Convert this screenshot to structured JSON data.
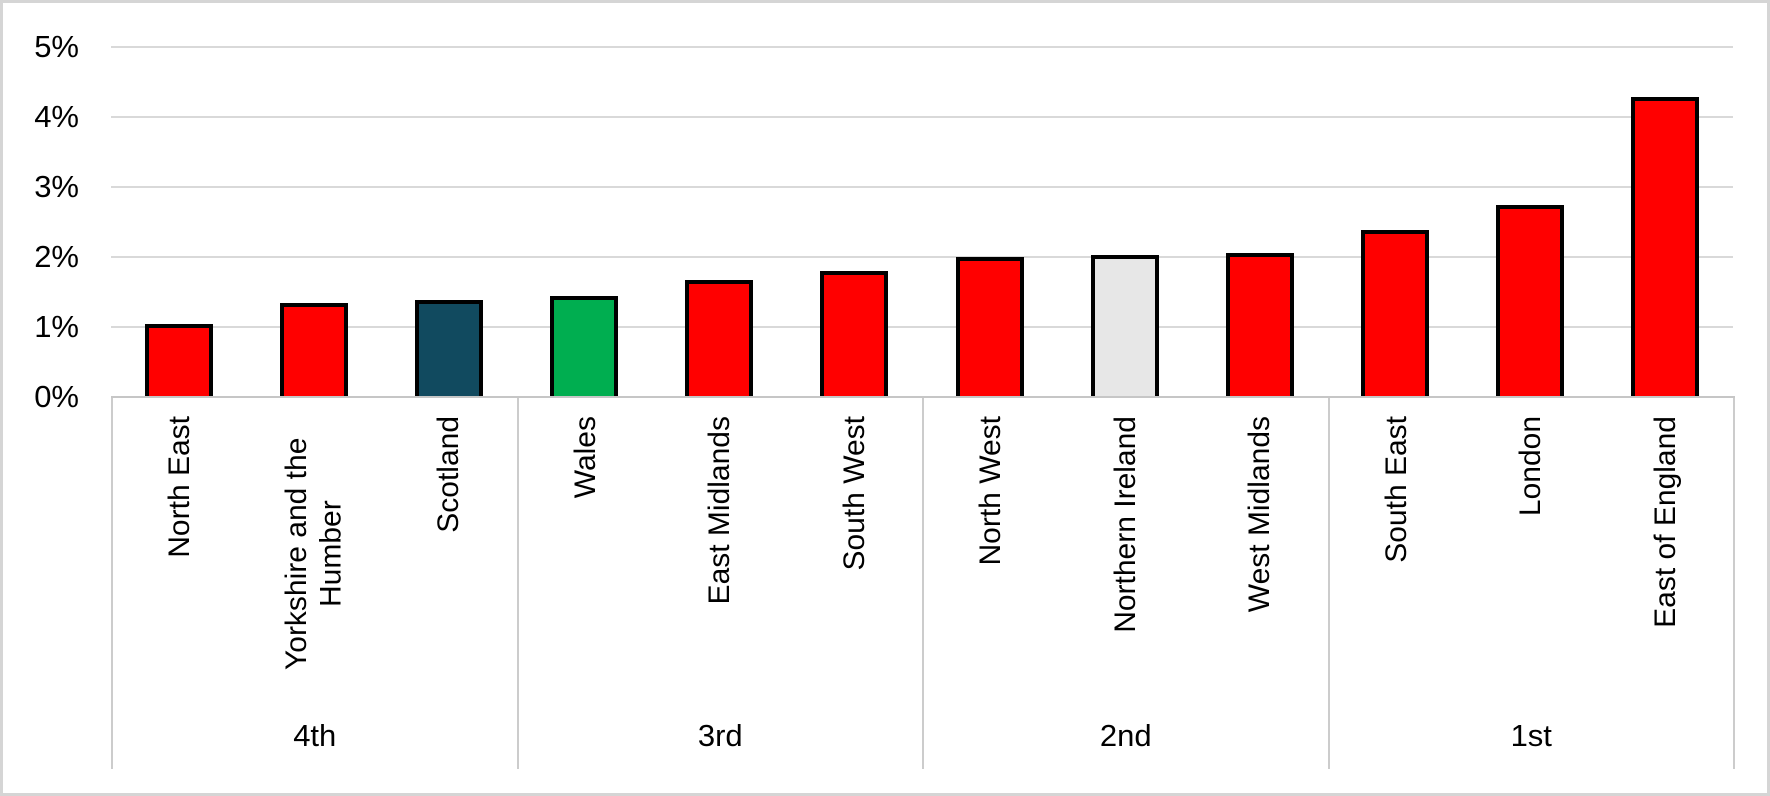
{
  "page": {
    "background": "#ffffff",
    "frame_border_color": "#d5d5d5"
  },
  "chart_data": {
    "type": "bar",
    "title": "",
    "unit": "%",
    "y_axis": {
      "min": 0,
      "max": 5,
      "tick_labels_top_down": [
        "5%",
        "4%",
        "3%",
        "2%",
        "1%",
        "0%"
      ],
      "gridlines": true,
      "gridline_color": "#d9d9d9",
      "axis_line_color": "#c6c6c6"
    },
    "x_axis": {
      "group_labels": [
        "4th",
        "3rd",
        "2nd",
        "1st"
      ],
      "group_divider_color": "#cccccc"
    },
    "bar_style": {
      "border_color": "#000000",
      "border_width_px": 4,
      "default_fill": "#ff0000"
    },
    "groups": [
      {
        "label": "4th",
        "bars": [
          {
            "region": "North East",
            "value_pct": 1.05,
            "fill": "#ff0000"
          },
          {
            "region": "Yorkshire and the Humber",
            "value_pct": 1.35,
            "fill": "#ff0000"
          },
          {
            "region": "Scotland",
            "value_pct": 1.38,
            "fill": "#114a5f"
          }
        ]
      },
      {
        "label": "3rd",
        "bars": [
          {
            "region": "Wales",
            "value_pct": 1.44,
            "fill": "#00ae50"
          },
          {
            "region": "East Midlands",
            "value_pct": 1.67,
            "fill": "#ff0000"
          },
          {
            "region": "South West",
            "value_pct": 1.8,
            "fill": "#ff0000"
          }
        ]
      },
      {
        "label": "2nd",
        "bars": [
          {
            "region": "North West",
            "value_pct": 2.0,
            "fill": "#ff0000"
          },
          {
            "region": "Northern Ireland",
            "value_pct": 2.03,
            "fill": "#e7e7e7"
          },
          {
            "region": "West Midlands",
            "value_pct": 2.06,
            "fill": "#ff0000"
          }
        ]
      },
      {
        "label": "1st",
        "bars": [
          {
            "region": "South East",
            "value_pct": 2.39,
            "fill": "#ff0000"
          },
          {
            "region": "London",
            "value_pct": 2.75,
            "fill": "#ff0000"
          },
          {
            "region": "East of England",
            "value_pct": 4.28,
            "fill": "#ff0000"
          }
        ]
      }
    ]
  }
}
